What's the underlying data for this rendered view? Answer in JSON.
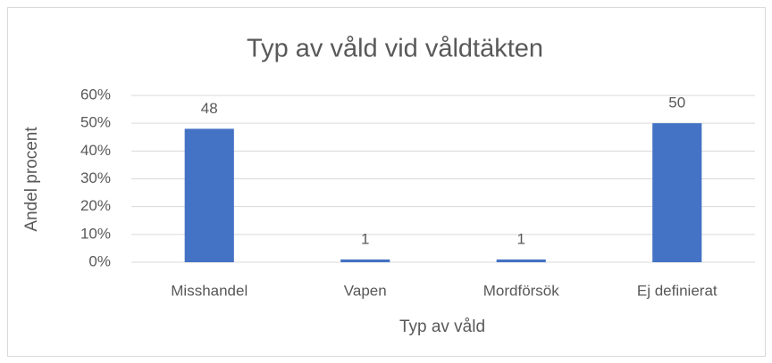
{
  "chart_data": {
    "type": "bar",
    "title": "Typ av våld vid våldtäkten",
    "x_label": "Typ av våld",
    "y_label": "Andel procent",
    "categories": [
      "Misshandel",
      "Vapen",
      "Mordförsök",
      "Ej definierat"
    ],
    "values": [
      48,
      1,
      1,
      50
    ],
    "color": "#4472c4",
    "ylim": [
      0,
      60
    ],
    "yticks": [
      {
        "value": 0,
        "label": "0%"
      },
      {
        "value": 10,
        "label": "10%"
      },
      {
        "value": 20,
        "label": "20%"
      },
      {
        "value": 30,
        "label": "30%"
      },
      {
        "value": 40,
        "label": "40%"
      },
      {
        "value": 50,
        "label": "50%"
      },
      {
        "value": 60,
        "label": "60%"
      }
    ],
    "grid": true
  }
}
